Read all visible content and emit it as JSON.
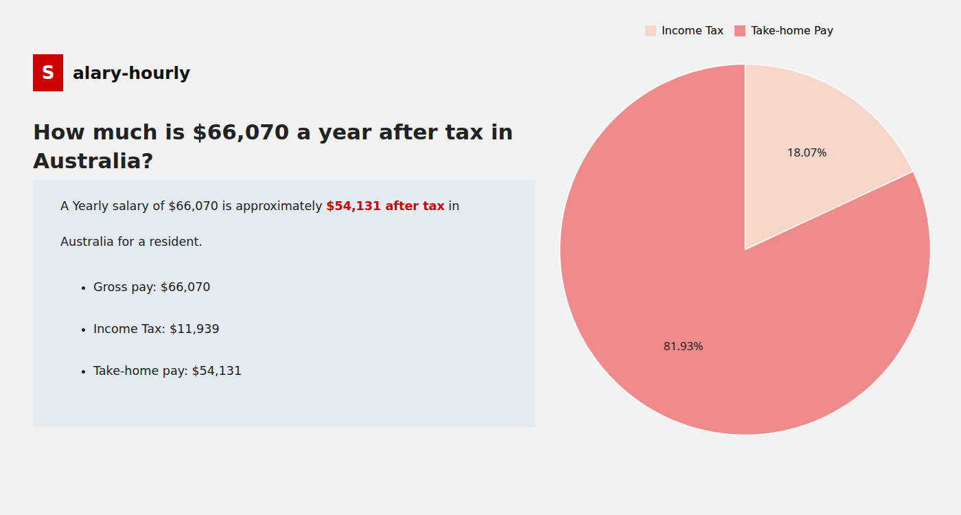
{
  "chart_data": {
    "type": "pie",
    "title": "How much is $66,070 a year after tax in\nAustralia?",
    "categories": [
      "Income Tax",
      "Take-home Pay"
    ],
    "values": [
      18.07,
      81.93
    ],
    "value_labels": [
      "18.07%",
      "81.93%"
    ],
    "colors": [
      "#f8d7ca",
      "#f08b8b"
    ],
    "data_labels": true,
    "legend": "top",
    "annotations": [
      [
        {
          "text": "S",
          "color": "#cc0000"
        },
        {
          "text": "alary-hourly"
        }
      ],
      [
        {
          "text": "A Yearly salary of $66,070 is approximately "
        },
        {
          "text": "$54,131 after tax",
          "color": "#cc0000"
        },
        {
          "text": " in"
        }
      ],
      [
        {
          "text": "Australia for a resident."
        }
      ],
      [
        {
          "text": "Gross pay: $66,070"
        }
      ],
      [
        {
          "text": "Income Tax: $11,939"
        }
      ],
      [
        {
          "text": "Take-home pay: $54,131"
        }
      ]
    ]
  }
}
